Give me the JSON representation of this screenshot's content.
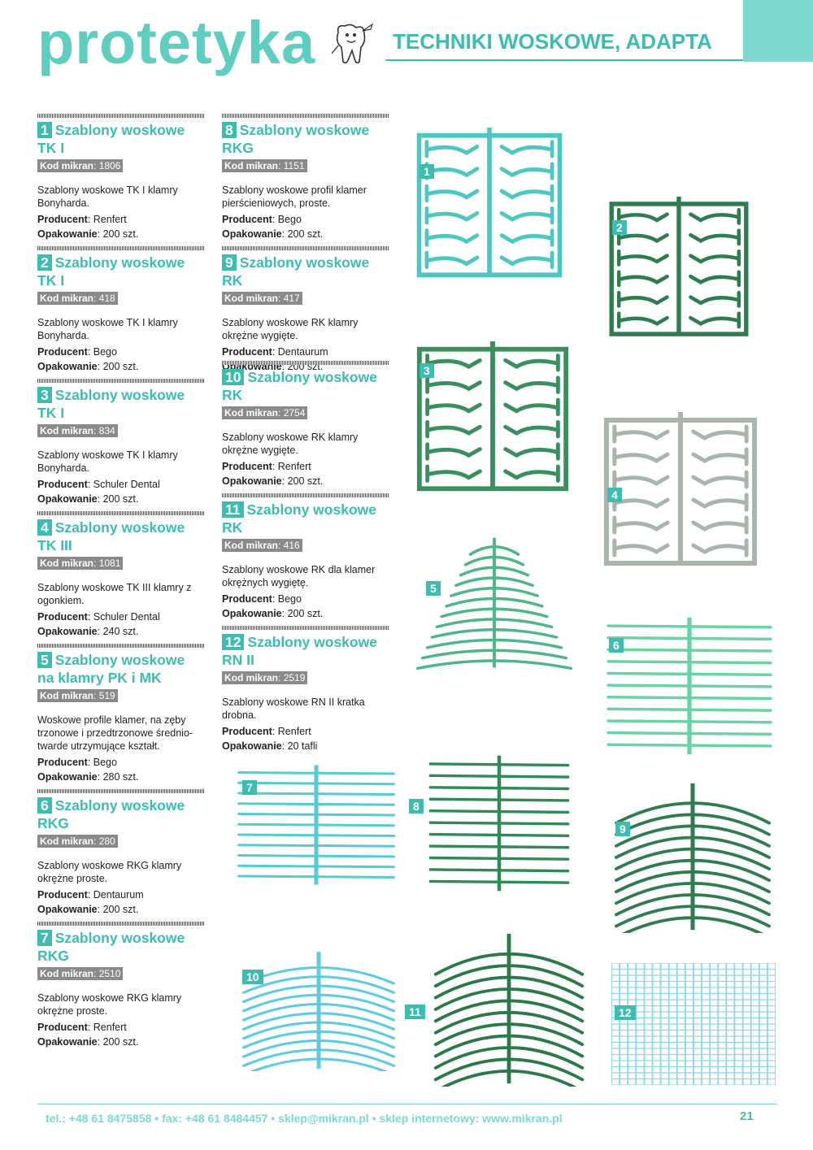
{
  "header": {
    "brand": "protetyka",
    "section_title": "TECHNIKI WOSKOWE, ADAPTA"
  },
  "labels": {
    "code": "Kod mikran",
    "producer": "Producent",
    "packaging": "Opakowanie"
  },
  "colors": {
    "accent": "#3dbdb0",
    "light_teal": "#7dd8cd",
    "dark_green": "#2e7d4f",
    "grey_badge": "#8a8a8a"
  },
  "products": [
    {
      "num": "1",
      "title": "Szablony woskowe TK I",
      "code": "1806",
      "desc": "Szablony woskowe TK I klamry Bonyharda.",
      "producer": "Renfert",
      "packaging": "200 szt."
    },
    {
      "num": "2",
      "title": "Szablony woskowe TK I",
      "code": "418",
      "desc": "Szablony woskowe TK I klamry Bonyharda.",
      "producer": "Bego",
      "packaging": "200 szt."
    },
    {
      "num": "3",
      "title": "Szablony woskowe TK I",
      "code": "834",
      "desc": "Szablony woskowe TK I klamry Bonyharda.",
      "producer": "Schuler Dental",
      "packaging": "200 szt."
    },
    {
      "num": "4",
      "title": "Szablony woskowe TK III",
      "code": "1081",
      "desc": "Szablony woskowe TK III klamry z ogonkiem.",
      "producer": "Schuler Dental",
      "packaging": "240 szt."
    },
    {
      "num": "5",
      "title": "Szablony woskowe na klamry PK i MK",
      "code": "519",
      "desc": "Woskowe profile klamer, na zęby trzonowe i przedtrzonowe średnio-twarde utrzymujące kształt.",
      "producer": "Bego",
      "packaging": "280 szt."
    },
    {
      "num": "6",
      "title": "Szablony woskowe RKG",
      "code": "280",
      "desc": "Szablony woskowe RKG klamry okrężne proste.",
      "producer": "Dentaurum",
      "packaging": "200 szt."
    },
    {
      "num": "7",
      "title": "Szablony woskowe RKG",
      "code": "2510",
      "desc": "Szablony woskowe RKG klamry okrężne proste.",
      "producer": "Renfert",
      "packaging": "200 szt."
    },
    {
      "num": "8",
      "title": "Szablony woskowe RKG",
      "code": "1151",
      "desc": "Szablony woskowe profil klamer pierścieniowych, proste.",
      "producer": "Bego",
      "packaging": "200 szt."
    },
    {
      "num": "9",
      "title": "Szablony woskowe RK",
      "code": "417",
      "desc": "Szablony woskowe RK klamry okrężne wygięte.",
      "producer": "Dentaurum",
      "packaging": "200 szt."
    },
    {
      "num": "10",
      "title": "Szablony woskowe RK",
      "code": "2754",
      "desc": "Szablony woskowe RK klamry okrężne wygięte.",
      "producer": "Renfert",
      "packaging": "200 szt."
    },
    {
      "num": "11",
      "title": "Szablony woskowe RK",
      "code": "416",
      "desc": "Szablony woskowe RK dla klamer okrężnych wygiętę.",
      "producer": "Bego",
      "packaging": "200 szt."
    },
    {
      "num": "12",
      "title": "Szablony woskowe RN II",
      "code": "2519",
      "desc": "Szablony woskowe RN II kratka drobna.",
      "producer": "Renfert",
      "packaging": "20 tafli"
    }
  ],
  "images": [
    {
      "num": "1",
      "style": "clasp-frame",
      "color": "#4cc7c2"
    },
    {
      "num": "2",
      "style": "clasp-frame",
      "color": "#2e7d4f"
    },
    {
      "num": "3",
      "style": "clasp-frame",
      "color": "#3a8f5e"
    },
    {
      "num": "4",
      "style": "clasp-frame",
      "color": "#a9b5ab"
    },
    {
      "num": "5",
      "style": "curved-fan",
      "color": "#4fb58a"
    },
    {
      "num": "6",
      "style": "straight-rake",
      "color": "#6ad3a6"
    },
    {
      "num": "7",
      "style": "straight-rake",
      "color": "#55cbd4"
    },
    {
      "num": "8",
      "style": "straight-rake",
      "color": "#2f8a55"
    },
    {
      "num": "9",
      "style": "arched-rake",
      "color": "#2e7d4f"
    },
    {
      "num": "10",
      "style": "arched-rake",
      "color": "#5ecbe0"
    },
    {
      "num": "11",
      "style": "arched-rake",
      "color": "#2a7a48"
    },
    {
      "num": "12",
      "style": "grid",
      "color": "#8fd6e6"
    }
  ],
  "footer": {
    "contact": "tel.: +48 61 8475858 • fax: +48 61 8484457 • sklep@mikran.pl • sklep internetowy: www.mikran.pl",
    "page_number": "21"
  }
}
